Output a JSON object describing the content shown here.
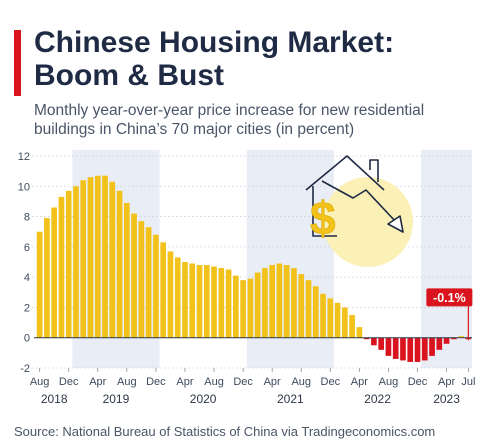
{
  "header": {
    "title_line1": "Chinese Housing Market:",
    "title_line2": "Boom & Bust",
    "subtitle_line1": "Monthly year-over-year price increase for new residential",
    "subtitle_line2": "buildings in China’s 70 major cities (in percent)"
  },
  "source": "Source: National Bureau of Statistics of China via Tradingeconomics.com",
  "colors": {
    "positive_bar": "#f2c21b",
    "negative_bar": "#d9141e",
    "accent": "#d9141e",
    "band": "#e9edf5",
    "zero_line": "#2d3748"
  },
  "illustration": {
    "icons": [
      "house-outline-icon",
      "dollar-sign-icon",
      "downtrend-arrow-icon"
    ]
  },
  "chart_data": {
    "type": "bar",
    "title": "Chinese Housing Market: Boom & Bust",
    "ylim": [
      -2,
      12
    ],
    "yticks": [
      -2,
      0,
      2,
      4,
      6,
      8,
      10,
      12
    ],
    "grid": true,
    "x_start": "2018-08",
    "x_end": "2023-07",
    "x": [
      "2018-08",
      "2018-09",
      "2018-10",
      "2018-11",
      "2018-12",
      "2019-01",
      "2019-02",
      "2019-03",
      "2019-04",
      "2019-05",
      "2019-06",
      "2019-07",
      "2019-08",
      "2019-09",
      "2019-10",
      "2019-11",
      "2019-12",
      "2020-01",
      "2020-02",
      "2020-03",
      "2020-04",
      "2020-05",
      "2020-06",
      "2020-07",
      "2020-08",
      "2020-09",
      "2020-10",
      "2020-11",
      "2020-12",
      "2021-01",
      "2021-02",
      "2021-03",
      "2021-04",
      "2021-05",
      "2021-06",
      "2021-07",
      "2021-08",
      "2021-09",
      "2021-10",
      "2021-11",
      "2021-12",
      "2022-01",
      "2022-02",
      "2022-03",
      "2022-04",
      "2022-05",
      "2022-06",
      "2022-07",
      "2022-08",
      "2022-09",
      "2022-10",
      "2022-11",
      "2022-12",
      "2023-01",
      "2023-02",
      "2023-03",
      "2023-04",
      "2023-05",
      "2023-06",
      "2023-07"
    ],
    "values": [
      7.0,
      7.9,
      8.6,
      9.3,
      9.7,
      10.0,
      10.4,
      10.6,
      10.7,
      10.7,
      10.3,
      9.7,
      8.9,
      8.2,
      7.7,
      7.3,
      6.8,
      6.3,
      5.7,
      5.3,
      5.0,
      4.9,
      4.8,
      4.8,
      4.7,
      4.6,
      4.5,
      4.1,
      3.8,
      3.9,
      4.3,
      4.6,
      4.8,
      4.9,
      4.8,
      4.6,
      4.2,
      3.8,
      3.4,
      2.9,
      2.6,
      2.3,
      2.0,
      1.5,
      0.7,
      -0.1,
      -0.5,
      -0.8,
      -1.2,
      -1.4,
      -1.5,
      -1.6,
      -1.6,
      -1.5,
      -1.2,
      -0.8,
      -0.4,
      -0.1,
      0.1,
      -0.1
    ],
    "tick_labels": [
      {
        "label": "Aug",
        "index": 0
      },
      {
        "label": "Dec",
        "index": 4
      },
      {
        "label": "Apr",
        "index": 8
      },
      {
        "label": "Aug",
        "index": 12
      },
      {
        "label": "Dec",
        "index": 16
      },
      {
        "label": "Apr",
        "index": 20
      },
      {
        "label": "Aug",
        "index": 24
      },
      {
        "label": "Dec",
        "index": 28
      },
      {
        "label": "Apr",
        "index": 32
      },
      {
        "label": "Aug",
        "index": 36
      },
      {
        "label": "Dec",
        "index": 40
      },
      {
        "label": "Apr",
        "index": 44
      },
      {
        "label": "Aug",
        "index": 48
      },
      {
        "label": "Dec",
        "index": 52
      },
      {
        "label": "Apr",
        "index": 56
      },
      {
        "label": "Jul",
        "index": 59
      }
    ],
    "year_labels": [
      {
        "label": "2018",
        "start": 0,
        "end": 4
      },
      {
        "label": "2019",
        "start": 5,
        "end": 16
      },
      {
        "label": "2020",
        "start": 17,
        "end": 28
      },
      {
        "label": "2021",
        "start": 29,
        "end": 40
      },
      {
        "label": "2022",
        "start": 41,
        "end": 52
      },
      {
        "label": "2023",
        "start": 53,
        "end": 59
      }
    ],
    "shaded_years": [
      "2019",
      "2021",
      "2023"
    ],
    "annotation": {
      "label": "-0.1%",
      "index": 59,
      "value": -0.1
    }
  }
}
